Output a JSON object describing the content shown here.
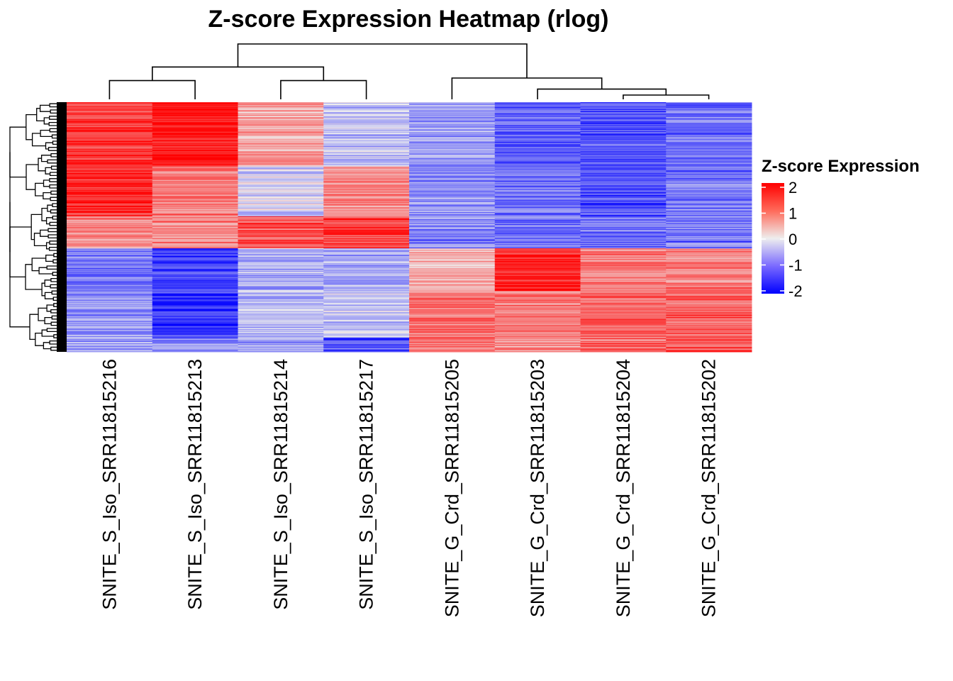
{
  "chart_data": {
    "type": "heatmap",
    "title": "Z-score Expression Heatmap (rlog)",
    "columns": [
      "SNITE_S_Iso_SRR11815216",
      "SNITE_S_Iso_SRR11815213",
      "SNITE_S_Iso_SRR11815214",
      "SNITE_S_Iso_SRR11815217",
      "SNITE_G_Crd_SRR11815205",
      "SNITE_G_Crd_SRR11815203",
      "SNITE_G_Crd_SRR11815204",
      "SNITE_G_Crd_SRR11815202"
    ],
    "legend": {
      "title": "Z-score Expression",
      "ticks": [
        "2",
        "1",
        "0",
        "-1",
        "-2"
      ],
      "min": -2,
      "max": 2,
      "colors": {
        "low": "#0000ff",
        "mid": "#eeeeee",
        "high": "#ff0000"
      }
    },
    "row_blocks": [
      {
        "rows": 90,
        "means": [
          1.5,
          1.9,
          0.6,
          -0.4,
          -0.7,
          -1.2,
          -1.3,
          -1.1
        ]
      },
      {
        "rows": 70,
        "means": [
          1.7,
          1.0,
          -0.2,
          0.9,
          -0.8,
          -1.0,
          -1.3,
          -1.0
        ]
      },
      {
        "rows": 45,
        "means": [
          0.8,
          0.9,
          1.3,
          1.6,
          -0.9,
          -1.1,
          -1.1,
          -1.0
        ]
      },
      {
        "rows": 60,
        "means": [
          -1.0,
          -1.5,
          -0.5,
          -0.6,
          0.5,
          1.7,
          1.0,
          0.9
        ]
      },
      {
        "rows": 65,
        "means": [
          -0.8,
          -1.6,
          -0.5,
          -0.4,
          1.1,
          0.9,
          1.1,
          1.2
        ]
      },
      {
        "rows": 20,
        "means": [
          -0.7,
          -0.9,
          -0.6,
          -1.4,
          1.0,
          0.8,
          1.0,
          1.3
        ]
      }
    ],
    "column_dendrogram": {
      "leaves": 8,
      "merges": [
        {
          "left": 0,
          "right": 1,
          "height": 0.22
        },
        {
          "left": 2,
          "right": 3,
          "height": 0.22
        },
        {
          "left": "m0",
          "right": "m1",
          "height": 0.38
        },
        {
          "left": 6,
          "right": 7,
          "height": 0.05
        },
        {
          "left": 5,
          "right": "m3",
          "height": 0.12
        },
        {
          "left": 4,
          "right": "m4",
          "height": 0.25
        },
        {
          "left": "m2",
          "right": "m5",
          "height": 0.65
        }
      ]
    }
  }
}
